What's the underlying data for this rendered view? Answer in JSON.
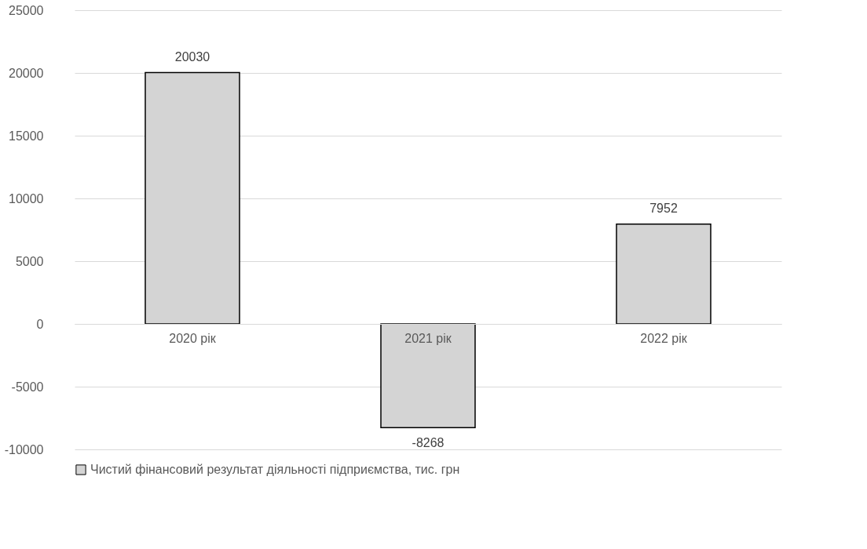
{
  "chart_data": {
    "type": "bar",
    "categories": [
      "2020 рік",
      "2021 рік",
      "2022 рік"
    ],
    "series": [
      {
        "name": "Чистий фінансовий результат діяльності підприємства, тис. грн",
        "color": "#d4d4d4",
        "values": [
          20030,
          -8268,
          7952
        ]
      }
    ],
    "ylim": [
      -10000,
      25000
    ],
    "yticks": [
      -10000,
      -5000,
      0,
      5000,
      10000,
      15000,
      20000,
      25000
    ],
    "grid": "y",
    "legend": "bottom",
    "data_labels": true
  }
}
